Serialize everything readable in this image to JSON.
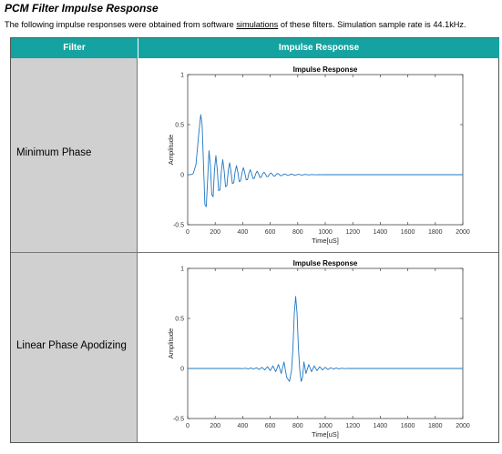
{
  "page": {
    "title": "PCM Filter Impulse Response",
    "intro_before": "The following impulse responses were obtained from software ",
    "intro_link": "simulations",
    "intro_after": " of these filters. Simulation sample rate is 44.1kHz."
  },
  "table": {
    "headers": {
      "filter": "Filter",
      "impulse": "Impulse Response"
    },
    "rows": [
      {
        "name": "Minimum Phase"
      },
      {
        "name": "Linear Phase Apodizing"
      }
    ]
  },
  "colors": {
    "header_bg": "#14a3a0",
    "name_cell_bg": "#d0d0d0",
    "trace": "#1f77c4"
  },
  "chart_data": [
    {
      "type": "line",
      "title": "Impulse Response",
      "xlabel": "Time[uS]",
      "ylabel": "Amplitude",
      "xlim": [
        0,
        2000
      ],
      "ylim": [
        -0.5,
        1
      ],
      "xticks": [
        0,
        200,
        400,
        600,
        800,
        1000,
        1200,
        1400,
        1600,
        1800,
        2000
      ],
      "yticks": [
        -0.5,
        0,
        0.5,
        1
      ],
      "ytick_labels": [
        "-0.5",
        "0",
        "0.5",
        "1"
      ],
      "grid": false,
      "series": [
        {
          "x": [
            0,
            20,
            40,
            60,
            80,
            95,
            105,
            115,
            125,
            135,
            145,
            155,
            165,
            175,
            185,
            195,
            205,
            215,
            225,
            235,
            245,
            255,
            265,
            275,
            285,
            295,
            305,
            315,
            325,
            335,
            345,
            355,
            365,
            375,
            385,
            395,
            405,
            415,
            425,
            435,
            445,
            455,
            465,
            475,
            485,
            495,
            505,
            515,
            525,
            535,
            545,
            555,
            565,
            575,
            585,
            595,
            605,
            615,
            625,
            635,
            645,
            655,
            665,
            675,
            685,
            695,
            705,
            715,
            725,
            735,
            745,
            755,
            765,
            775,
            785,
            795,
            805,
            815,
            825,
            835,
            845,
            855,
            865,
            875,
            885,
            895,
            905,
            915,
            925,
            935,
            945,
            955,
            965,
            975,
            985,
            995,
            1005,
            1015,
            1025,
            1035,
            1045,
            1055,
            1100,
            1200,
            1400,
            1600,
            1800,
            2000
          ],
          "y": [
            0,
            0,
            0.01,
            0.1,
            0.4,
            0.6,
            0.5,
            0.1,
            -0.3,
            -0.32,
            -0.05,
            0.24,
            0.1,
            -0.2,
            -0.22,
            0.05,
            0.19,
            0.05,
            -0.16,
            -0.15,
            0.04,
            0.15,
            0.04,
            -0.12,
            -0.11,
            0.04,
            0.12,
            0.03,
            -0.09,
            -0.08,
            0.03,
            0.09,
            0.02,
            -0.07,
            -0.06,
            0.02,
            0.07,
            0.02,
            -0.05,
            -0.05,
            0.015,
            0.05,
            0.01,
            -0.04,
            -0.035,
            0.01,
            0.035,
            0.01,
            -0.028,
            -0.025,
            0.008,
            0.025,
            0.007,
            -0.02,
            -0.018,
            0.005,
            0.018,
            0.005,
            -0.014,
            -0.012,
            0.004,
            0.012,
            0.003,
            -0.01,
            -0.009,
            0.003,
            0.008,
            0.002,
            -0.007,
            -0.006,
            0.002,
            0.006,
            0.002,
            -0.005,
            -0.004,
            0.001,
            0.004,
            0.001,
            -0.003,
            -0.003,
            0.001,
            0.003,
            0.001,
            -0.002,
            -0.002,
            0.001,
            0.002,
            0,
            -0.001,
            -0.001,
            0,
            0.001,
            0,
            -0.001,
            0,
            0,
            0,
            0,
            0,
            0,
            0,
            0,
            0,
            0,
            0,
            0,
            0,
            0
          ]
        }
      ]
    },
    {
      "type": "line",
      "title": "Impulse Response",
      "xlabel": "Time[uS]",
      "ylabel": "Amplitude",
      "xlim": [
        0,
        2000
      ],
      "ylim": [
        -0.5,
        1
      ],
      "xticks": [
        0,
        200,
        400,
        600,
        800,
        1000,
        1200,
        1400,
        1600,
        1800,
        2000
      ],
      "yticks": [
        -0.5,
        0,
        0.5,
        1
      ],
      "ytick_labels": [
        "-0.5",
        "0",
        "0.5",
        "1"
      ],
      "grid": false,
      "series": [
        {
          "x": [
            0,
            380,
            400,
            420,
            440,
            460,
            480,
            500,
            520,
            540,
            560,
            580,
            600,
            620,
            640,
            660,
            680,
            700,
            720,
            740,
            755,
            765,
            775,
            785,
            795,
            805,
            815,
            825,
            835,
            845,
            860,
            880,
            900,
            920,
            940,
            960,
            980,
            1000,
            1020,
            1040,
            1060,
            1080,
            1100,
            1120,
            1140,
            1160,
            1180,
            1220,
            2000
          ],
          "y": [
            0,
            0,
            -0.002,
            0.003,
            -0.004,
            0.005,
            -0.006,
            0.008,
            -0.01,
            0.012,
            -0.015,
            0.018,
            -0.022,
            0.026,
            -0.032,
            0.04,
            -0.05,
            0.065,
            -0.09,
            -0.13,
            -0.02,
            0.2,
            0.55,
            0.72,
            0.55,
            0.2,
            -0.02,
            -0.13,
            -0.09,
            0.065,
            -0.05,
            0.04,
            -0.032,
            0.026,
            -0.022,
            0.018,
            -0.015,
            0.012,
            -0.01,
            0.008,
            -0.006,
            0.005,
            -0.004,
            0.003,
            -0.002,
            0.001,
            0,
            0,
            0
          ]
        }
      ]
    }
  ]
}
